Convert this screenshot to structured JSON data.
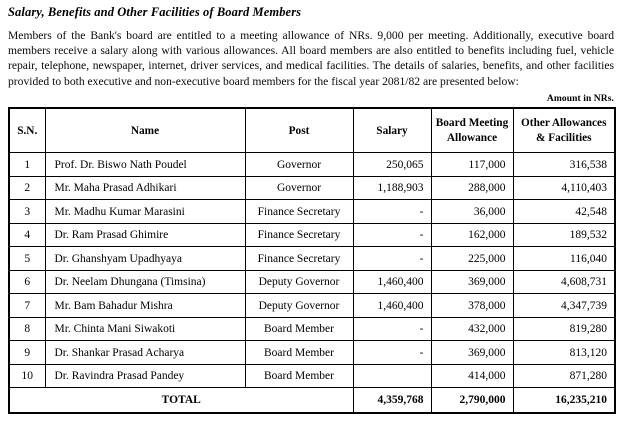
{
  "doc": {
    "title": "Salary, Benefits and Other Facilities of Board Members",
    "intro_paragraph": "Members of the Bank's board are entitled to a meeting allowance of NRs. 9,000 per meeting. Additionally, executive board members receive a salary along with various allowances. All board members are also entitled to benefits including fuel, vehicle repair, telephone, newspaper, internet, driver services, and medical facilities. The details of salaries, benefits, and other facilities provided to both executive and non-executive board members for the fiscal year 2081/82 are presented below:",
    "amount_note": "Amount in NRs."
  },
  "table": {
    "headers": {
      "sn": "S.N.",
      "name": "Name",
      "post": "Post",
      "salary": "Salary",
      "board_meeting_allowance": "Board Meeting Allowance",
      "other_allowances": "Other Allowances & Facilities"
    },
    "rows": [
      {
        "sn": "1",
        "name": "Prof. Dr. Biswo Nath Poudel",
        "post": "Governor",
        "salary": "250,065",
        "bma": "117,000",
        "other": "316,538"
      },
      {
        "sn": "2",
        "name": "Mr. Maha Prasad Adhikari",
        "post": "Governor",
        "salary": "1,188,903",
        "bma": "288,000",
        "other": "4,110,403"
      },
      {
        "sn": "3",
        "name": "Mr. Madhu Kumar Marasini",
        "post": "Finance Secretary",
        "salary": "-",
        "bma": "36,000",
        "other": "42,548"
      },
      {
        "sn": "4",
        "name": "Dr. Ram Prasad Ghimire",
        "post": "Finance Secretary",
        "salary": "-",
        "bma": "162,000",
        "other": "189,532"
      },
      {
        "sn": "5",
        "name": "Dr. Ghanshyam Upadhyaya",
        "post": "Finance Secretary",
        "salary": "-",
        "bma": "225,000",
        "other": "116,040"
      },
      {
        "sn": "6",
        "name": "Dr. Neelam Dhungana (Timsina)",
        "post": "Deputy Governor",
        "salary": "1,460,400",
        "bma": "369,000",
        "other": "4,608,731"
      },
      {
        "sn": "7",
        "name": "Mr. Bam Bahadur Mishra",
        "post": "Deputy Governor",
        "salary": "1,460,400",
        "bma": "378,000",
        "other": "4,347,739"
      },
      {
        "sn": "8",
        "name": "Mr. Chinta Mani Siwakoti",
        "post": "Board Member",
        "salary": "-",
        "bma": "432,000",
        "other": "819,280"
      },
      {
        "sn": "9",
        "name": "Dr. Shankar Prasad Acharya",
        "post": "Board Member",
        "salary": "-",
        "bma": "369,000",
        "other": "813,120"
      },
      {
        "sn": "10",
        "name": "Dr. Ravindra Prasad Pandey",
        "post": "Board Member",
        "salary": "",
        "bma": "414,000",
        "other": "871,280"
      }
    ],
    "total": {
      "label": "TOTAL",
      "salary": "4,359,768",
      "bma": "2,790,000",
      "other": "16,235,210"
    }
  }
}
